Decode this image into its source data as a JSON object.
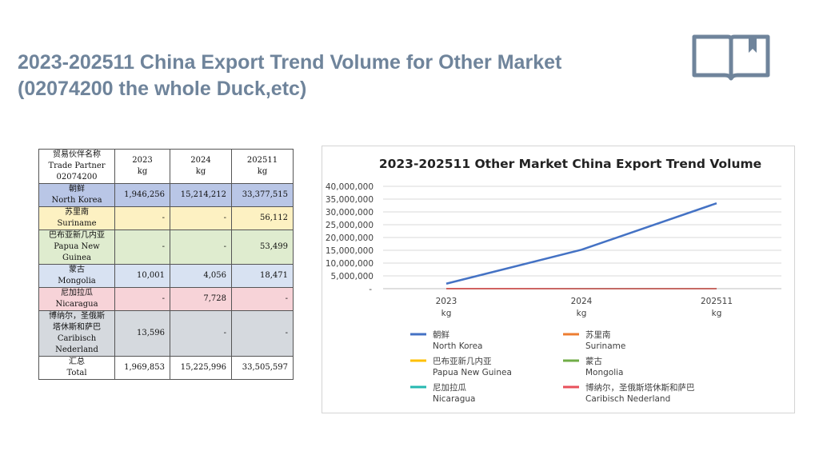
{
  "slide": {
    "title_line1": "2023-202511  China Export Trend Volume for Other Market",
    "title_line2": "(02074200 the whole Duck,etc)"
  },
  "icons": {
    "book": "book-bookmark-icon"
  },
  "table": {
    "header": {
      "partner": [
        "贸易伙伴名称",
        "Trade Partner",
        "02074200"
      ],
      "cols": [
        [
          "2023",
          "kg"
        ],
        [
          "2024",
          "kg"
        ],
        [
          "202511",
          "kg"
        ]
      ]
    },
    "rows": [
      {
        "name": [
          "朝鲜",
          "North Korea"
        ],
        "values": [
          "1,946,256",
          "15,214,212",
          "33,377,515"
        ]
      },
      {
        "name": [
          "苏里南",
          "Suriname"
        ],
        "values": [
          "-",
          "-",
          "56,112"
        ]
      },
      {
        "name": [
          "巴布亚新几内亚",
          "Papua New",
          "Guinea"
        ],
        "values": [
          "-",
          "-",
          "53,499"
        ]
      },
      {
        "name": [
          "蒙古",
          "Mongolia"
        ],
        "values": [
          "10,001",
          "4,056",
          "18,471"
        ]
      },
      {
        "name": [
          "尼加拉瓜",
          "Nicaragua"
        ],
        "values": [
          "-",
          "7,728",
          "-"
        ]
      },
      {
        "name": [
          "博纳尔，圣俄斯",
          "塔休斯和萨巴",
          "Caribisch",
          "Nederland"
        ],
        "values": [
          "13,596",
          "-",
          "-"
        ]
      }
    ],
    "total": {
      "name": [
        "汇总",
        "Total"
      ],
      "values": [
        "1,969,853",
        "15,225,996",
        "33,505,597"
      ]
    }
  },
  "chart_data": {
    "type": "line",
    "title": "2023-202511 Other Market China Export Trend Volume",
    "categories": [
      [
        "2023",
        "kg"
      ],
      [
        "2024",
        "kg"
      ],
      [
        "202511",
        "kg"
      ]
    ],
    "ylim": [
      0,
      40000000
    ],
    "yticks": [
      0,
      5000000,
      10000000,
      15000000,
      20000000,
      25000000,
      30000000,
      35000000,
      40000000
    ],
    "ytick_labels": [
      "-",
      "5,000,000",
      "10,000,000",
      "15,000,000",
      "20,000,000",
      "25,000,000",
      "30,000,000",
      "35,000,000",
      "40,000,000"
    ],
    "grid": true,
    "legend_position": "bottom",
    "series": [
      {
        "name": [
          "朝鲜",
          "North Korea"
        ],
        "color": "#4472c4",
        "values": [
          1946256,
          15214212,
          33377515
        ]
      },
      {
        "name": [
          "苏里南",
          "Suriname"
        ],
        "color": "#ed7d31",
        "values": [
          0,
          0,
          56112
        ]
      },
      {
        "name": [
          "巴布亚新几内亚",
          "Papua New Guinea"
        ],
        "color": "#ffc000",
        "values": [
          0,
          0,
          53499
        ]
      },
      {
        "name": [
          "蒙古",
          "Mongolia"
        ],
        "color": "#70ad47",
        "values": [
          10001,
          4056,
          18471
        ]
      },
      {
        "name": [
          "尼加拉瓜",
          "Nicaragua"
        ],
        "color": "#26b8b0",
        "values": [
          0,
          7728,
          0
        ]
      },
      {
        "name": [
          "博纳尔，圣俄斯塔休斯和萨巴",
          "Caribisch Nederland"
        ],
        "color": "#e8505b",
        "values": [
          13596,
          0,
          0
        ]
      }
    ]
  }
}
